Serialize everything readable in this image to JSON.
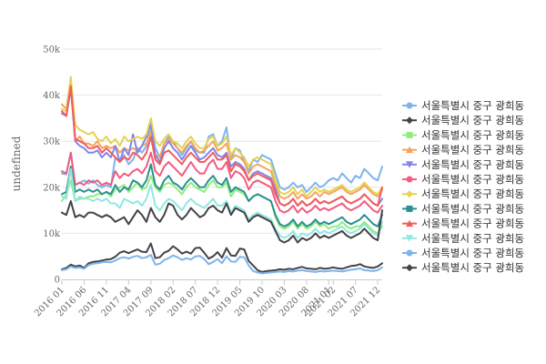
{
  "chart_data": {
    "type": "line",
    "ylabel": "undefined",
    "ylim": [
      0,
      50000
    ],
    "y_ticks": [
      0,
      10000,
      20000,
      30000,
      40000,
      50000
    ],
    "y_tick_labels": [
      "0",
      "10k",
      "20k",
      "30k",
      "40k",
      "50k"
    ],
    "x_start": "2016-01",
    "x_end": "2022-03",
    "x_tick_labels": [
      "2016 01",
      "2016 06",
      "2016 11",
      "2017 04",
      "2017 09",
      "2018 02",
      "2018 07",
      "2018 12",
      "2019 05",
      "2019 10",
      "2020 03",
      "2020 08",
      "2021 01",
      "2021 02",
      "2021 07",
      "2021 12"
    ],
    "x_tick_positions": [
      0,
      5,
      10,
      15,
      20,
      25,
      30,
      35,
      40,
      45,
      50,
      55,
      60,
      61,
      66,
      71
    ],
    "legend_position": "right",
    "grid": true,
    "series": [
      {
        "name": "서울특별시 중구 광희동",
        "color": "#7cb5ec",
        "marker": "circle",
        "values": [
          23000,
          22800,
          27500,
          20500,
          21000,
          21500,
          20800,
          21500,
          20500,
          20000,
          20500,
          20000,
          26500,
          25500,
          27000,
          25000,
          26000,
          28500,
          27500,
          29000,
          33500,
          28500,
          26500,
          29500,
          31000,
          30000,
          28500,
          27000,
          28500,
          30000,
          28000,
          27500,
          27500,
          31000,
          31500,
          29000,
          30000,
          33000,
          26000,
          28500,
          28000,
          25500,
          23500,
          26000,
          25500,
          27000,
          26500,
          26000,
          23000,
          20000,
          19500,
          20000,
          21000,
          20000,
          20500,
          19000,
          20000,
          21000,
          20000,
          20500,
          21500,
          22000,
          21500,
          23000,
          22000,
          21000,
          22500,
          22000,
          24000,
          23000,
          22000,
          21500,
          24500
        ]
      },
      {
        "name": "서울특별시 중구 광희동",
        "color": "#434348",
        "marker": "diamond",
        "values": [
          2200,
          2500,
          3200,
          2800,
          3000,
          2500,
          3500,
          3800,
          3900,
          4100,
          4300,
          4400,
          4900,
          5800,
          6100,
          5700,
          6100,
          6500,
          6000,
          5900,
          7800,
          4600,
          4800,
          5800,
          6200,
          7200,
          6500,
          5600,
          6000,
          5600,
          6800,
          6900,
          5800,
          4500,
          5000,
          5900,
          4700,
          6800,
          5200,
          5100,
          6700,
          6500,
          4000,
          3000,
          2000,
          1600,
          1800,
          1900,
          2000,
          2200,
          2100,
          2300,
          2200,
          2500,
          2700,
          2400,
          2300,
          2200,
          2500,
          2300,
          2400,
          2600,
          2400,
          2300,
          2600,
          2900,
          3000,
          3300,
          2800,
          2600,
          2500,
          2800,
          3500
        ]
      },
      {
        "name": "서울특별시 중구 광희동",
        "color": "#90ed7d",
        "marker": "square",
        "values": [
          17000,
          18500,
          21500,
          17000,
          17500,
          17500,
          18000,
          18000,
          18500,
          18500,
          19000,
          18000,
          19500,
          20000,
          20500,
          19000,
          20000,
          21000,
          19500,
          20000,
          22500,
          20000,
          19000,
          20500,
          21000,
          20500,
          19500,
          18500,
          20000,
          21000,
          20000,
          19500,
          19000,
          20500,
          21500,
          20000,
          20000,
          21000,
          18000,
          19500,
          19000,
          18500,
          17000,
          18000,
          18500,
          18000,
          17500,
          17000,
          13500,
          11500,
          11000,
          11500,
          12500,
          11000,
          12000,
          11000,
          11500,
          12500,
          11500,
          12000,
          11000,
          11500,
          11500,
          12500,
          11500,
          11000,
          11500,
          11500,
          12500,
          11500,
          10500,
          10000,
          11500
        ]
      },
      {
        "name": "서울특별시 중구 광희동",
        "color": "#f7a35c",
        "marker": "triangle",
        "values": [
          38000,
          37000,
          43500,
          30000,
          31000,
          29500,
          29500,
          29000,
          30000,
          28500,
          29000,
          28500,
          29000,
          27500,
          28500,
          28000,
          28500,
          28000,
          29000,
          29500,
          32000,
          27000,
          26500,
          29500,
          30500,
          29500,
          28500,
          27500,
          29000,
          30000,
          28500,
          27500,
          28000,
          29000,
          30000,
          28000,
          28500,
          29500,
          26000,
          27000,
          26500,
          25500,
          23000,
          24500,
          25000,
          24500,
          24000,
          23500,
          20500,
          18000,
          17500,
          18000,
          19000,
          17500,
          18500,
          17500,
          18000,
          19000,
          18000,
          19000,
          18500,
          19000,
          19500,
          20000,
          19000,
          18500,
          19000,
          19500,
          20500,
          19500,
          18500,
          18000,
          19500
        ]
      },
      {
        "name": "서울특별시 중구 광희동",
        "color": "#8085e9",
        "marker": "triangle-down",
        "values": [
          36000,
          35500,
          41500,
          30000,
          29000,
          28500,
          27500,
          27500,
          28000,
          26500,
          27500,
          26500,
          29000,
          25500,
          28500,
          27000,
          31500,
          27500,
          29000,
          31000,
          34000,
          27000,
          25500,
          28500,
          30000,
          28500,
          27500,
          26000,
          27500,
          29000,
          27500,
          26000,
          26500,
          27500,
          28500,
          27000,
          26500,
          27500,
          24500,
          25500,
          25000,
          24000,
          21500,
          23000,
          23500,
          23000,
          22500,
          22000,
          19500,
          16500,
          16000,
          16500,
          17500,
          16000,
          17000,
          16000,
          16500,
          17500,
          16500,
          17000,
          16500,
          17000,
          17500,
          18000,
          17000,
          16500,
          17000,
          17500,
          18500,
          17500,
          16500,
          16000,
          17500
        ]
      },
      {
        "name": "서울특별시 중구 광희동",
        "color": "#f15c80",
        "marker": "circle",
        "values": [
          23500,
          23000,
          27500,
          20500,
          21000,
          20500,
          21500,
          21000,
          21500,
          20500,
          21000,
          20500,
          23500,
          22000,
          23000,
          22500,
          23500,
          24000,
          23000,
          24500,
          27500,
          23500,
          22500,
          24500,
          25500,
          24500,
          23500,
          22500,
          24000,
          25500,
          24000,
          23000,
          23000,
          25000,
          26000,
          24000,
          24000,
          25500,
          22000,
          23500,
          23000,
          22000,
          19500,
          21000,
          21500,
          21000,
          20500,
          20000,
          17000,
          15000,
          14500,
          15000,
          16000,
          14500,
          15500,
          14500,
          15000,
          16000,
          15000,
          15500,
          15000,
          15500,
          16000,
          16500,
          15500,
          15000,
          15500,
          16000,
          17000,
          16000,
          15000,
          14500,
          16000
        ]
      },
      {
        "name": "서울특별시 중구 광희동",
        "color": "#e4d354",
        "marker": "diamond",
        "values": [
          37000,
          36500,
          44000,
          33500,
          32500,
          32000,
          31500,
          32000,
          30500,
          30000,
          31000,
          29500,
          30500,
          29000,
          31000,
          30000,
          30500,
          31000,
          30500,
          31500,
          35000,
          30000,
          29000,
          30500,
          31500,
          30000,
          29500,
          28500,
          30000,
          31000,
          29500,
          28500,
          28500,
          30500,
          31000,
          29000,
          29500,
          31000,
          27000,
          28500,
          27500,
          26500,
          24500,
          26000,
          26500,
          26000,
          25500,
          25000,
          21500,
          19000,
          18500,
          19000,
          20000,
          18500,
          19500,
          18000,
          19000,
          20000,
          19000,
          19500,
          19000,
          19500,
          20000,
          20500,
          19500,
          19000,
          19500,
          20000,
          21000,
          20000,
          19000,
          18500,
          20000
        ]
      },
      {
        "name": "서울특별시 중구 광희동",
        "color": "#2b908f",
        "marker": "square",
        "values": [
          18500,
          19000,
          24500,
          19000,
          19500,
          19000,
          19500,
          19000,
          19500,
          18500,
          19000,
          18500,
          20500,
          19000,
          20000,
          19500,
          21500,
          21000,
          20000,
          21500,
          25000,
          20500,
          19500,
          21500,
          22500,
          21000,
          20500,
          19500,
          21000,
          22000,
          21000,
          20000,
          20000,
          21500,
          22500,
          21000,
          20500,
          22000,
          19000,
          20000,
          19500,
          19000,
          17000,
          18000,
          18500,
          18000,
          17500,
          17000,
          14000,
          12000,
          11500,
          12000,
          13000,
          11500,
          12500,
          11500,
          12000,
          13000,
          12000,
          12500,
          12000,
          12500,
          13000,
          13500,
          12500,
          12000,
          12500,
          13000,
          14000,
          13000,
          12000,
          11500,
          14000
        ]
      },
      {
        "name": "서울특별시 중구 광희동",
        "color": "#f45b5b",
        "marker": "triangle",
        "values": [
          36500,
          35500,
          42000,
          30500,
          30000,
          29500,
          28500,
          28500,
          29000,
          27500,
          28500,
          27500,
          26500,
          25500,
          26500,
          26000,
          27500,
          27000,
          26000,
          27500,
          31000,
          26000,
          25000,
          27500,
          28000,
          27000,
          26000,
          25000,
          26500,
          27500,
          26500,
          25500,
          25500,
          26500,
          27500,
          26000,
          26000,
          27000,
          23500,
          25000,
          24500,
          23500,
          21500,
          22500,
          23000,
          22500,
          22000,
          21500,
          18500,
          16500,
          16000,
          16500,
          17500,
          16000,
          17000,
          16000,
          16500,
          17500,
          16500,
          17000,
          16500,
          17000,
          17500,
          18000,
          17000,
          16500,
          17000,
          17500,
          18500,
          17500,
          16500,
          16000,
          20000
        ]
      },
      {
        "name": "서울특별시 중구 광희동",
        "color": "#91e8e1",
        "marker": "triangle-down",
        "values": [
          18000,
          17500,
          24000,
          17000,
          18000,
          17500,
          17500,
          17000,
          17500,
          17000,
          17500,
          16500,
          16500,
          15500,
          17500,
          17000,
          16500,
          17000,
          16000,
          17500,
          20500,
          16000,
          15000,
          16500,
          17500,
          17000,
          16000,
          15000,
          16500,
          17500,
          16500,
          16000,
          15500,
          16500,
          17500,
          16000,
          16000,
          17000,
          14500,
          16000,
          15500,
          15000,
          13000,
          14000,
          14500,
          14000,
          13500,
          13000,
          11000,
          9500,
          9000,
          9500,
          10500,
          9000,
          10000,
          9500,
          10000,
          11000,
          10000,
          10500,
          10000,
          10500,
          11000,
          11500,
          10500,
          10000,
          10500,
          11000,
          12000,
          11000,
          10000,
          9500,
          12500
        ]
      },
      {
        "name": "서울특별시 중구 광희동",
        "color": "#7cb5ec",
        "marker": "circle",
        "values": [
          2000,
          2200,
          2800,
          2500,
          2600,
          2300,
          3100,
          3400,
          3500,
          3700,
          3800,
          3700,
          4100,
          4600,
          4800,
          4500,
          4900,
          5100,
          4600,
          4800,
          5300,
          3200,
          3400,
          4200,
          4600,
          5200,
          4800,
          4200,
          4600,
          4300,
          5000,
          5100,
          4400,
          3300,
          3800,
          4400,
          3500,
          5000,
          3900,
          3800,
          4900,
          4800,
          3000,
          1800,
          1500,
          1300,
          1400,
          1500,
          1600,
          1700,
          1600,
          1800,
          1700,
          1900,
          2000,
          1800,
          1700,
          1600,
          1800,
          1700,
          1800,
          1900,
          1800,
          1700,
          1900,
          2100,
          2200,
          2400,
          2000,
          1900,
          1800,
          2000,
          2600
        ]
      },
      {
        "name": "서울특별시 중구 광희동",
        "color": "#434348",
        "marker": "diamond",
        "values": [
          14500,
          14000,
          17000,
          13500,
          14000,
          13500,
          14500,
          14500,
          14000,
          13500,
          14000,
          13500,
          12500,
          13000,
          13500,
          12000,
          13500,
          15000,
          14000,
          12500,
          15500,
          13500,
          12500,
          14000,
          16500,
          16000,
          14000,
          13000,
          14000,
          15500,
          14500,
          13500,
          14000,
          15500,
          16000,
          15000,
          14500,
          16500,
          14000,
          15500,
          15000,
          14500,
          12500,
          13500,
          14000,
          13500,
          13000,
          12500,
          10500,
          8500,
          8000,
          8500,
          9500,
          8000,
          9000,
          8500,
          9000,
          10000,
          9000,
          9500,
          9000,
          9500,
          10000,
          10500,
          9500,
          9000,
          9500,
          10000,
          11000,
          10000,
          9000,
          8500,
          15000
        ]
      }
    ]
  }
}
